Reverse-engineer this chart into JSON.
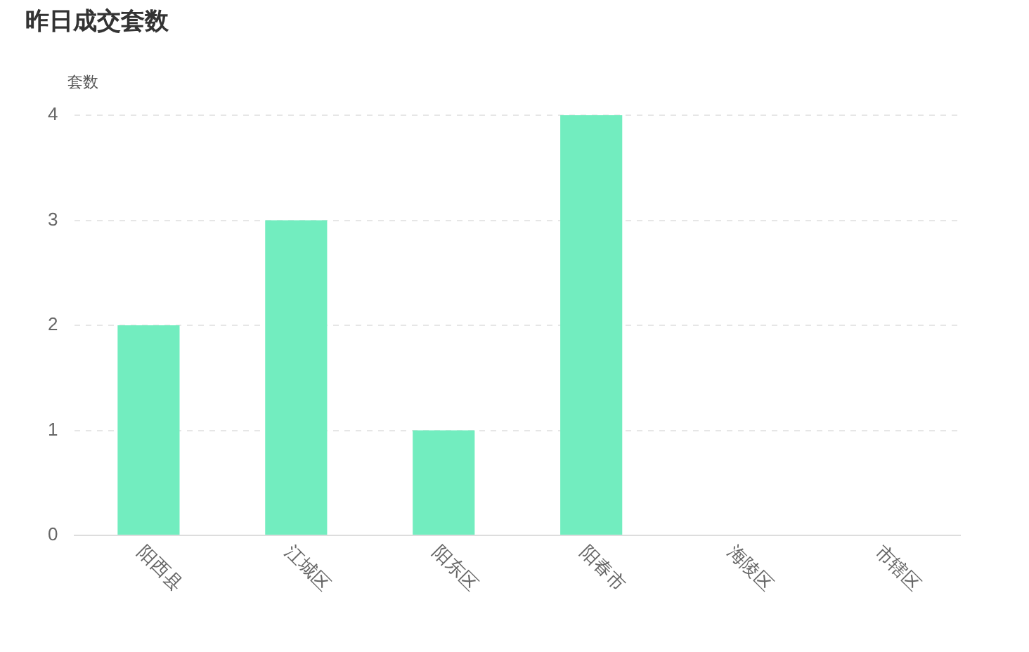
{
  "chart_data": {
    "type": "bar",
    "title": "昨日成交套数",
    "ylabel": "套数",
    "categories": [
      "阳西县",
      "江城区",
      "阳东区",
      "阳春市",
      "海陵区",
      "市辖区"
    ],
    "values": [
      2,
      3,
      1,
      4,
      0,
      0
    ],
    "color": "#72edbf",
    "ylim": [
      0,
      4
    ],
    "yticks": [
      0,
      1,
      2,
      3,
      4
    ],
    "grid": "y",
    "legend": false
  }
}
